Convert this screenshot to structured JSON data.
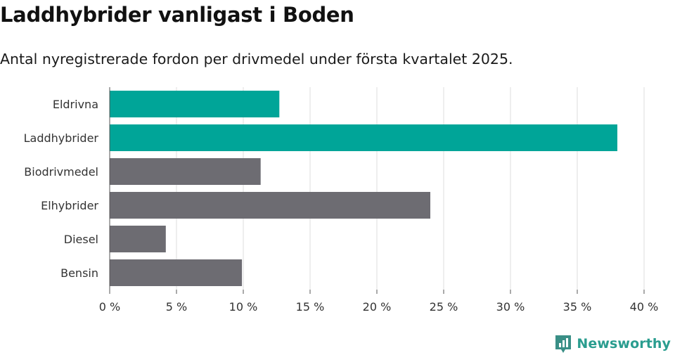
{
  "title": "Laddhybrider vanligast i Boden",
  "subtitle": "Antal nyregistrerade fordon per drivmedel under första kvartalet 2025.",
  "brand": "Newsworthy",
  "chart_data": {
    "type": "bar",
    "orientation": "horizontal",
    "categories": [
      "Eldrivna",
      "Laddhybrider",
      "Biodrivmedel",
      "Elhybrider",
      "Diesel",
      "Bensin"
    ],
    "values": [
      12.7,
      38.0,
      11.3,
      24.0,
      4.2,
      9.9
    ],
    "unit": "%",
    "highlight": [
      true,
      true,
      false,
      false,
      false,
      false
    ],
    "colors": {
      "highlight": "#00a598",
      "default": "#6d6c72",
      "grid": "#dddddd",
      "axis": "#555555"
    },
    "xlim": [
      0,
      40
    ],
    "xticks": [
      0,
      5,
      10,
      15,
      20,
      25,
      30,
      35,
      40
    ],
    "xtick_labels": [
      "0 %",
      "5 %",
      "10 %",
      "15 %",
      "20 %",
      "25 %",
      "30 %",
      "35 %",
      "40 %"
    ],
    "grid": true,
    "legend": "none"
  }
}
